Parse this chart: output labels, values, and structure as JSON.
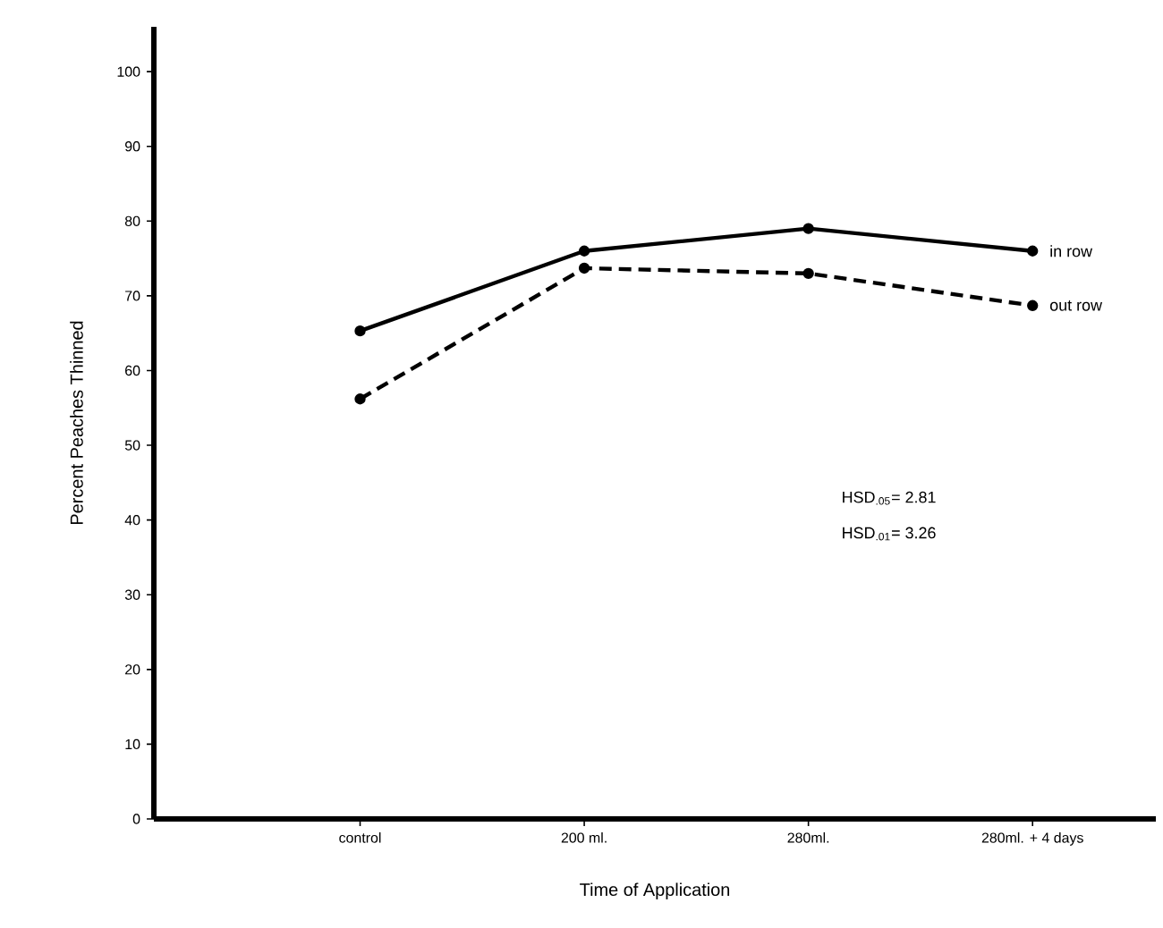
{
  "chart_data": {
    "type": "line",
    "xlabel": "Time of Application",
    "ylabel": "Percent Peaches Thinned",
    "categories": [
      "control",
      "200 ml.",
      "280ml.",
      "280ml. + 4 days"
    ],
    "series": [
      {
        "name": "in row",
        "color": "#000000",
        "line_style": "solid",
        "values": [
          65.3,
          76,
          79,
          76
        ]
      },
      {
        "name": "out row",
        "color": "#000000",
        "line_style": "dashed",
        "values": [
          56.2,
          73.7,
          73,
          68.7
        ]
      }
    ],
    "ylim": [
      0,
      106
    ],
    "yticks": [
      0,
      10,
      20,
      30,
      40,
      50,
      60,
      70,
      80,
      90,
      100
    ],
    "marker": "circle",
    "grid": false,
    "annotations": [
      "HSD$_{.05}$= 2.81",
      "HSD$_{.01}$= 3.26"
    ]
  }
}
